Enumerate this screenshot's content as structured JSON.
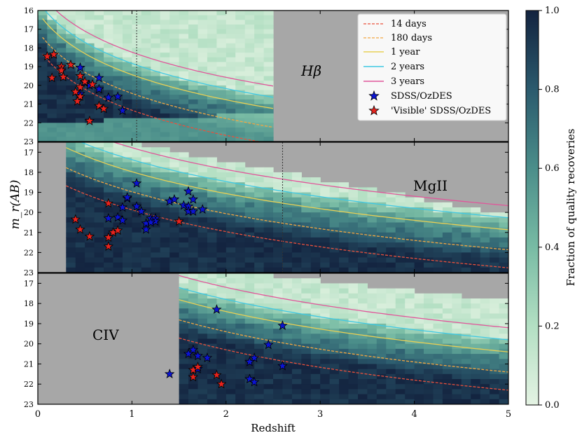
{
  "chart_data": {
    "type": "heatmap",
    "ylabel": "m_r(AB)",
    "xlabel": "Redshift",
    "xlim": [
      0,
      5
    ],
    "ylim": [
      23,
      16
    ],
    "xticks": [
      "0",
      "1",
      "2",
      "3",
      "4",
      "5"
    ],
    "colorbar": {
      "label": "Fraction of quality recoveries",
      "range": [
        0.0,
        1.0
      ],
      "ticks": [
        "0.0",
        "0.2",
        "0.4",
        "0.6",
        "0.8",
        "1.0"
      ],
      "color_low": "#e4f3e3",
      "color_high": "#13233f"
    },
    "colors": {
      "no_data": "#a7a7a7",
      "curve_14_days": "#e9503c",
      "curve_180_days": "#f2a642",
      "curve_1_year": "#e8cf55",
      "curve_2_years": "#40c9e3",
      "curve_3_years": "#e0579a",
      "star_sdss": "#0b14d4",
      "star_visible": "#e8231d"
    },
    "legend": {
      "placement": "top-right",
      "entries": [
        "14 days",
        "180 days",
        "1 year",
        "2 years",
        "3 years",
        "SDSS/OzDES",
        "'Visible' SDSS/OzDES"
      ]
    },
    "panels": [
      {
        "label": "Hβ",
        "z_range": [
          0,
          2.5
        ],
        "yticks": [
          "16",
          "17",
          "18",
          "19",
          "20",
          "21",
          "22",
          "23"
        ],
        "vline": 1.05,
        "sdss": [
          [
            0.45,
            19.05
          ],
          [
            0.65,
            19.6
          ],
          [
            0.5,
            19.85
          ],
          [
            0.55,
            20.0
          ],
          [
            0.65,
            20.2
          ],
          [
            0.75,
            20.65
          ],
          [
            0.85,
            20.6
          ],
          [
            0.9,
            21.35
          ],
          [
            0.45,
            20.45
          ]
        ],
        "visible": [
          [
            0.1,
            18.45
          ],
          [
            0.17,
            18.35
          ],
          [
            0.35,
            18.9
          ],
          [
            0.25,
            19.0
          ],
          [
            0.25,
            19.2
          ],
          [
            0.27,
            19.55
          ],
          [
            0.15,
            19.6
          ],
          [
            0.45,
            19.5
          ],
          [
            0.5,
            19.8
          ],
          [
            0.58,
            19.95
          ],
          [
            0.45,
            20.1
          ],
          [
            0.4,
            20.35
          ],
          [
            0.45,
            20.6
          ],
          [
            0.42,
            20.85
          ],
          [
            0.65,
            21.1
          ],
          [
            0.7,
            21.25
          ],
          [
            0.55,
            21.9
          ]
        ]
      },
      {
        "label": "MgII",
        "z_range": [
          0.3,
          5
        ],
        "yticks": [
          "17",
          "18",
          "19",
          "20",
          "21",
          "22",
          "23"
        ],
        "vline": 2.6,
        "sdss": [
          [
            1.05,
            18.55
          ],
          [
            0.95,
            19.3
          ],
          [
            1.05,
            19.7
          ],
          [
            0.9,
            19.75
          ],
          [
            1.1,
            19.95
          ],
          [
            0.75,
            20.3
          ],
          [
            0.85,
            20.25
          ],
          [
            0.9,
            20.4
          ],
          [
            1.15,
            20.55
          ],
          [
            1.2,
            20.3
          ],
          [
            1.25,
            20.3
          ],
          [
            1.25,
            20.45
          ],
          [
            1.2,
            20.5
          ],
          [
            1.15,
            20.85
          ],
          [
            1.4,
            19.45
          ],
          [
            1.45,
            19.35
          ],
          [
            1.55,
            19.65
          ],
          [
            1.6,
            19.7
          ],
          [
            1.65,
            19.35
          ],
          [
            1.6,
            19.95
          ],
          [
            1.65,
            19.95
          ],
          [
            1.6,
            18.95
          ],
          [
            1.75,
            19.85
          ],
          [
            0.95,
            19.25
          ]
        ],
        "visible": [
          [
            0.75,
            19.55
          ],
          [
            0.4,
            20.35
          ],
          [
            0.45,
            20.85
          ],
          [
            0.55,
            21.2
          ],
          [
            0.8,
            21.0
          ],
          [
            0.85,
            20.9
          ],
          [
            0.75,
            21.25
          ],
          [
            0.75,
            21.7
          ],
          [
            1.5,
            20.45
          ]
        ]
      },
      {
        "label": "CIV",
        "z_range": [
          1.5,
          5
        ],
        "yticks": [
          "17",
          "18",
          "19",
          "20",
          "21",
          "22",
          "23"
        ],
        "vline": null,
        "sdss": [
          [
            1.9,
            18.3
          ],
          [
            2.6,
            19.1
          ],
          [
            2.45,
            20.05
          ],
          [
            1.65,
            20.3
          ],
          [
            1.6,
            20.5
          ],
          [
            1.7,
            20.6
          ],
          [
            1.8,
            20.7
          ],
          [
            2.3,
            20.7
          ],
          [
            2.25,
            20.9
          ],
          [
            1.7,
            21.25
          ],
          [
            2.6,
            21.1
          ],
          [
            1.4,
            21.5
          ],
          [
            2.25,
            21.75
          ],
          [
            2.3,
            21.9
          ]
        ],
        "visible": [
          [
            1.65,
            21.3
          ],
          [
            1.7,
            21.15
          ],
          [
            1.65,
            21.65
          ],
          [
            1.9,
            21.55
          ],
          [
            1.95,
            22.0
          ]
        ]
      }
    ]
  }
}
